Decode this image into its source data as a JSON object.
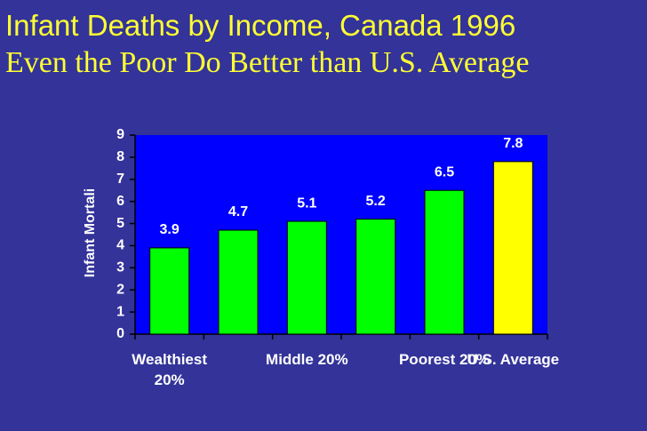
{
  "chart_data": {
    "type": "bar",
    "title": "Infant Deaths by Income, Canada 1996",
    "subtitle": "Even the Poor Do Better than U.S. Average",
    "y_label": "Infant Mortali",
    "categories": [
      "Wealthiest 20%",
      null,
      "Middle 20%",
      null,
      "Poorest 20%",
      "U.S. Average"
    ],
    "values": [
      3.9,
      4.7,
      5.1,
      5.2,
      6.5,
      7.8
    ],
    "colors": [
      "#00ff00",
      "#00ff00",
      "#00ff00",
      "#00ff00",
      "#00ff00",
      "#ffff00"
    ],
    "ylim": [
      0,
      9
    ],
    "yticks": [
      0,
      1,
      2,
      3,
      4,
      5,
      6,
      7,
      8,
      9
    ],
    "plot_background": "#0000ff"
  }
}
